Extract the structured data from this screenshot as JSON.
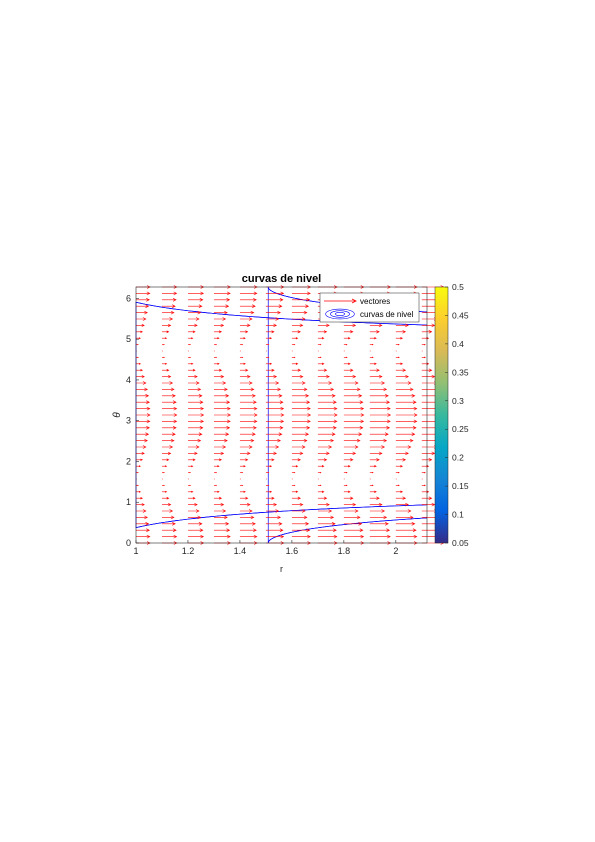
{
  "chart_data": {
    "type": "contour",
    "title": "curvas de nivel",
    "xlabel": "r",
    "ylabel": "θ",
    "xlim": [
      1,
      2.12
    ],
    "ylim": [
      0,
      6.28
    ],
    "xticks": [
      1,
      1.2,
      1.4,
      1.6,
      1.8,
      2
    ],
    "xtick_labels": [
      "1",
      "1.2",
      "1.4",
      "1.6",
      "1.8",
      "2"
    ],
    "yticks": [
      0,
      1,
      2,
      3,
      4,
      5,
      6
    ],
    "ytick_labels": [
      "0",
      "1",
      "2",
      "3",
      "4",
      "5",
      "6"
    ],
    "legend": {
      "placement": "top-right",
      "entries": [
        {
          "label": "vectores",
          "color": "#ff0000",
          "kind": "quiver"
        },
        {
          "label": "curvas de nivel",
          "color": "#0000ff",
          "kind": "contour"
        }
      ]
    },
    "colorbar": {
      "ticks": [
        0.05,
        0.1,
        0.15,
        0.2,
        0.25,
        0.3,
        0.35,
        0.4,
        0.45,
        0.5
      ],
      "tick_labels": [
        "0.05",
        "0.1",
        "0.15",
        "0.2",
        "0.25",
        "0.3",
        "0.35",
        "0.4",
        "0.45",
        "0.5"
      ],
      "range": [
        0.05,
        0.5
      ],
      "colormap": "parula"
    },
    "contour_levels": [
      0.05,
      0.1,
      0.15,
      0.2,
      0.25,
      0.3,
      0.35,
      0.4,
      0.45
    ],
    "contour_color": "#0000ff",
    "quiver_color": "#ff0000",
    "quiver_r": [
      1,
      1.1,
      1.2,
      1.3,
      1.4,
      1.5,
      1.6,
      1.7,
      1.8,
      1.9,
      2,
      2.1
    ],
    "grid": false
  }
}
